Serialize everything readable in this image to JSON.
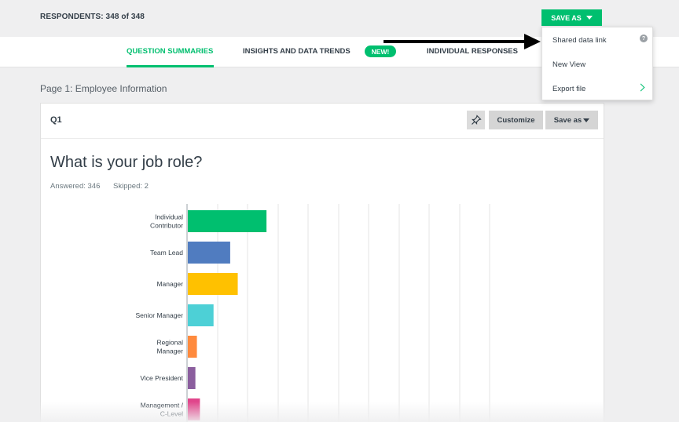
{
  "header": {
    "respondents": "RESPONDENTS: 348 of 348",
    "save_as_label": "SAVE AS"
  },
  "tabs": [
    {
      "label": "QUESTION SUMMARIES",
      "active": true
    },
    {
      "label": "INSIGHTS AND DATA TRENDS",
      "badge": "NEW!"
    },
    {
      "label": "INDIVIDUAL RESPONSES"
    }
  ],
  "save_menu": {
    "items": [
      {
        "label": "Shared data link",
        "icon": "help-icon"
      },
      {
        "label": "New View"
      },
      {
        "label": "Export file",
        "icon": "chevron-right-icon"
      }
    ]
  },
  "page": {
    "label": "Page 1: Employee Information"
  },
  "question": {
    "number": "Q1",
    "title": "What is your job role?",
    "answered": "Answered: 346",
    "skipped": "Skipped: 2",
    "customize_label": "Customize",
    "save_as_label": "Save as",
    "pin_icon": "pin-icon"
  },
  "colors": {
    "accent": "#00bf6f"
  },
  "chart_data": {
    "type": "bar",
    "orientation": "horizontal",
    "categories": [
      "Individual Contributor",
      "Team Lead",
      "Manager",
      "Senior Manager",
      "Regional Manager",
      "Vice President",
      "Management / C-Level"
    ],
    "category_lines": [
      [
        "Individual",
        "Contributor"
      ],
      [
        "Team Lead"
      ],
      [
        "Manager"
      ],
      [
        "Senior Manager"
      ],
      [
        "Regional",
        "Manager"
      ],
      [
        "Vice President"
      ],
      [
        "Management /",
        "C-Level"
      ]
    ],
    "values": [
      26,
      14,
      16.5,
      8.5,
      3,
      2.5,
      4
    ],
    "colors": [
      "#00bf6f",
      "#507cc0",
      "#ffc100",
      "#4dd0d6",
      "#ff8a3d",
      "#8b5e9e",
      "#e0458b"
    ],
    "xlim": [
      0,
      100
    ],
    "grid": true
  }
}
